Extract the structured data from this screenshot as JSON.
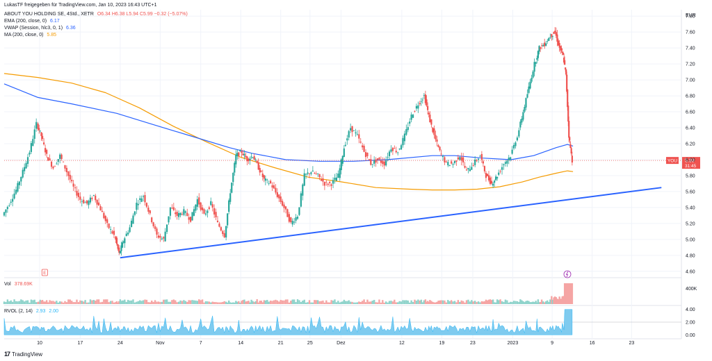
{
  "header": {
    "title": "LukasTF freigegeben für TradingView.com, Jan 10, 2023 16:43 UTC+1"
  },
  "legend": {
    "symbol": "ABOUT YOU HOLDING SE, 4Std., XETR",
    "ohlc": "O6.34 H6.38 L5.94 C5.99 −0.32 (−5.07%)",
    "ema_label": "EMA (200, close, 0)",
    "ema_value": "6.17",
    "vwap_label": "VWAP (Session, hlc3, 0, 1)",
    "vwap_value": "6.36",
    "ma_label": "MA (200, close, 0)",
    "ma_value": "5.85",
    "vol_label": "Vol",
    "vol_value": "378.69K",
    "rvol_label": "RVOL (2, 14)",
    "rvol_value1": "2.93",
    "rvol_value2": "2.00"
  },
  "price_tag": {
    "symbol": "YOU",
    "price": "5.99",
    "countdown": "31:45"
  },
  "footer": {
    "brand": "TradingView"
  },
  "colors": {
    "up": "#26a69a",
    "down": "#ef5350",
    "ema": "#2962ff",
    "ma": "#f59b00",
    "trendline": "#2962ff",
    "rvol": "#29b6f6",
    "grid": "#f0f3fa"
  },
  "chart_data": {
    "type": "candlestick",
    "currency": "EUR",
    "y_ticks": [
      "7.80",
      "7.60",
      "7.40",
      "7.20",
      "7.00",
      "6.80",
      "6.60",
      "6.40",
      "6.20",
      "6.00",
      "5.80",
      "5.60",
      "5.40",
      "5.20",
      "5.00",
      "4.80",
      "4.60"
    ],
    "ylim": [
      4.52,
      7.88
    ],
    "x_ticks": [
      {
        "label": "10",
        "x": 0.063
      },
      {
        "label": "17",
        "x": 0.135
      },
      {
        "label": "24",
        "x": 0.206
      },
      {
        "label": "Nov",
        "x": 0.277
      },
      {
        "label": "7",
        "x": 0.349
      },
      {
        "label": "14",
        "x": 0.42
      },
      {
        "label": "21",
        "x": 0.491
      },
      {
        "label": "25",
        "x": 0.543
      },
      {
        "label": "Dez",
        "x": 0.598
      },
      {
        "label": "12",
        "x": 0.706
      },
      {
        "label": "19",
        "x": 0.777
      },
      {
        "label": "23",
        "x": 0.832
      },
      {
        "label": "2023",
        "x": 0.903
      },
      {
        "label": "9",
        "x": 0.973
      },
      {
        "label": "16",
        "x": 1.044
      },
      {
        "label": "23",
        "x": 1.114
      }
    ],
    "close_path": [
      [
        0.0,
        5.3
      ],
      [
        0.012,
        5.45
      ],
      [
        0.024,
        5.62
      ],
      [
        0.036,
        5.85
      ],
      [
        0.048,
        6.1
      ],
      [
        0.06,
        6.45
      ],
      [
        0.068,
        6.3
      ],
      [
        0.078,
        6.05
      ],
      [
        0.09,
        5.9
      ],
      [
        0.102,
        6.05
      ],
      [
        0.114,
        5.85
      ],
      [
        0.126,
        5.65
      ],
      [
        0.138,
        5.5
      ],
      [
        0.15,
        5.45
      ],
      [
        0.162,
        5.55
      ],
      [
        0.174,
        5.38
      ],
      [
        0.186,
        5.18
      ],
      [
        0.198,
        5.05
      ],
      [
        0.206,
        4.82
      ],
      [
        0.214,
        4.98
      ],
      [
        0.226,
        5.15
      ],
      [
        0.238,
        5.45
      ],
      [
        0.25,
        5.55
      ],
      [
        0.262,
        5.3
      ],
      [
        0.274,
        5.05
      ],
      [
        0.286,
        5.0
      ],
      [
        0.298,
        5.4
      ],
      [
        0.31,
        5.3
      ],
      [
        0.322,
        5.35
      ],
      [
        0.334,
        5.25
      ],
      [
        0.346,
        5.5
      ],
      [
        0.358,
        5.3
      ],
      [
        0.37,
        5.45
      ],
      [
        0.382,
        5.2
      ],
      [
        0.394,
        5.05
      ],
      [
        0.404,
        5.6
      ],
      [
        0.414,
        6.05
      ],
      [
        0.424,
        6.1
      ],
      [
        0.434,
        6.0
      ],
      [
        0.444,
        6.05
      ],
      [
        0.454,
        5.9
      ],
      [
        0.464,
        5.75
      ],
      [
        0.476,
        5.7
      ],
      [
        0.488,
        5.55
      ],
      [
        0.5,
        5.4
      ],
      [
        0.512,
        5.2
      ],
      [
        0.524,
        5.3
      ],
      [
        0.536,
        5.8
      ],
      [
        0.548,
        5.85
      ],
      [
        0.56,
        5.8
      ],
      [
        0.572,
        5.7
      ],
      [
        0.584,
        5.7
      ],
      [
        0.596,
        5.8
      ],
      [
        0.606,
        6.15
      ],
      [
        0.618,
        6.4
      ],
      [
        0.63,
        6.3
      ],
      [
        0.642,
        6.1
      ],
      [
        0.654,
        5.95
      ],
      [
        0.666,
        6.0
      ],
      [
        0.678,
        5.95
      ],
      [
        0.69,
        6.15
      ],
      [
        0.702,
        6.1
      ],
      [
        0.714,
        6.3
      ],
      [
        0.726,
        6.55
      ],
      [
        0.738,
        6.7
      ],
      [
        0.748,
        6.8
      ],
      [
        0.756,
        6.55
      ],
      [
        0.766,
        6.3
      ],
      [
        0.776,
        6.1
      ],
      [
        0.788,
        5.95
      ],
      [
        0.8,
        5.95
      ],
      [
        0.812,
        6.05
      ],
      [
        0.824,
        5.85
      ],
      [
        0.836,
        5.95
      ],
      [
        0.848,
        6.05
      ],
      [
        0.858,
        5.8
      ],
      [
        0.868,
        5.7
      ],
      [
        0.878,
        5.8
      ],
      [
        0.89,
        5.95
      ],
      [
        0.902,
        6.05
      ],
      [
        0.914,
        6.3
      ],
      [
        0.924,
        6.6
      ],
      [
        0.934,
        6.9
      ],
      [
        0.944,
        7.2
      ],
      [
        0.952,
        7.4
      ],
      [
        0.962,
        7.45
      ],
      [
        0.972,
        7.55
      ],
      [
        0.98,
        7.6
      ],
      [
        0.988,
        7.4
      ],
      [
        0.994,
        7.3
      ],
      [
        0.999,
        7.05
      ],
      [
        1.004,
        6.3
      ],
      [
        1.01,
        5.99
      ]
    ],
    "ema_path": [
      [
        0.0,
        6.95
      ],
      [
        0.06,
        6.78
      ],
      [
        0.12,
        6.7
      ],
      [
        0.2,
        6.58
      ],
      [
        0.26,
        6.45
      ],
      [
        0.33,
        6.3
      ],
      [
        0.4,
        6.15
      ],
      [
        0.44,
        6.08
      ],
      [
        0.5,
        6.0
      ],
      [
        0.56,
        5.98
      ],
      [
        0.62,
        5.98
      ],
      [
        0.68,
        6.0
      ],
      [
        0.76,
        6.05
      ],
      [
        0.8,
        6.05
      ],
      [
        0.85,
        6.02
      ],
      [
        0.9,
        6.0
      ],
      [
        0.94,
        6.05
      ],
      [
        0.98,
        6.15
      ],
      [
        1.0,
        6.19
      ],
      [
        1.01,
        6.17
      ]
    ],
    "ma_path": [
      [
        0.0,
        7.08
      ],
      [
        0.06,
        7.03
      ],
      [
        0.12,
        6.96
      ],
      [
        0.18,
        6.84
      ],
      [
        0.24,
        6.65
      ],
      [
        0.3,
        6.42
      ],
      [
        0.36,
        6.22
      ],
      [
        0.42,
        6.03
      ],
      [
        0.48,
        5.9
      ],
      [
        0.54,
        5.78
      ],
      [
        0.6,
        5.72
      ],
      [
        0.66,
        5.65
      ],
      [
        0.72,
        5.63
      ],
      [
        0.76,
        5.62
      ],
      [
        0.8,
        5.62
      ],
      [
        0.84,
        5.63
      ],
      [
        0.88,
        5.66
      ],
      [
        0.92,
        5.72
      ],
      [
        0.95,
        5.78
      ],
      [
        0.98,
        5.83
      ],
      [
        1.0,
        5.86
      ],
      [
        1.01,
        5.85
      ]
    ],
    "trendline": [
      [
        0.206,
        4.77
      ],
      [
        1.167,
        5.65
      ]
    ],
    "current_price": 5.99,
    "vol_ticks": [
      "400K"
    ],
    "rvol_ticks": [
      "4.00",
      "2.00",
      "0.00"
    ],
    "rvol_ylim": [
      -0.4,
      4.4
    ],
    "rvol_ref_level": 2.0
  }
}
